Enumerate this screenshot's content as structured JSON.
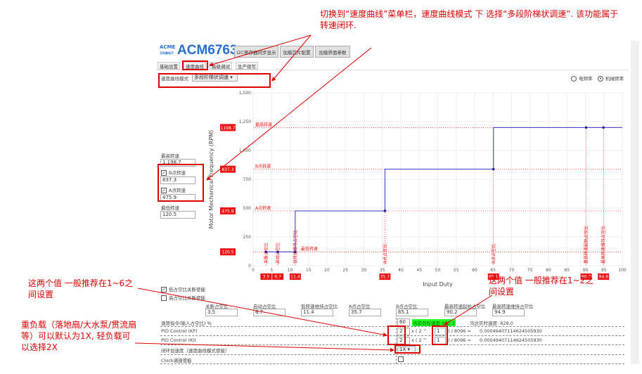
{
  "app": {
    "logo": "ACME",
    "logo_sub": "艾科微电子",
    "title": "ACM6763",
    "buttons": [
      "I2C寄存器同步显示",
      "加载芯片配置",
      "加载界面参数"
    ],
    "tabs": [
      "基础设置",
      "速度曲线",
      "高级调试",
      "生产烧写"
    ],
    "active_tab": "速度曲线"
  },
  "mode": {
    "label": "速度曲线模式",
    "value": "多段阶梯状调速"
  },
  "radios": [
    {
      "label": "电频率",
      "checked": false
    },
    {
      "label": "机械频率",
      "checked": true
    }
  ],
  "speeds": {
    "max_label": "最高转速",
    "max": "1,198.7",
    "b_label": "B点转速",
    "b": "837.3",
    "b_checked": true,
    "a_label": "A点转速",
    "a": "475.9",
    "a_checked": true,
    "min_label": "最低转速",
    "min": "120.5"
  },
  "chart_data": {
    "type": "line",
    "xlabel": "Input Duty",
    "ylabel": "Motor Mechanical Frequency (RPM)",
    "xlim": [
      0,
      100
    ],
    "ylim": [
      0,
      1500
    ],
    "xticks": [
      0,
      5,
      10,
      15,
      20,
      25,
      30,
      35,
      40,
      45,
      50,
      55,
      60,
      65,
      70,
      75,
      80,
      85,
      90,
      95,
      100
    ],
    "yticks": [
      "0",
      "250",
      "500",
      "750",
      "1,000",
      "1,250",
      "1,500"
    ],
    "grid": true,
    "series": [
      {
        "color": "#3333cc",
        "points": [
          [
            3.5,
            120.5
          ],
          [
            6.7,
            120.5
          ],
          [
            11.4,
            120.5
          ],
          [
            11.4,
            475.9
          ],
          [
            35.7,
            475.9
          ],
          [
            35.7,
            837.3
          ],
          [
            65.1,
            837.3
          ],
          [
            65.1,
            1198.7
          ],
          [
            90.2,
            1198.7
          ],
          [
            94.9,
            1198.7
          ],
          [
            100,
            1198.7
          ]
        ]
      }
    ],
    "markers": [
      [
        3.5,
        120.5
      ],
      [
        6.7,
        120.5
      ],
      [
        11.4,
        120.5
      ],
      [
        35.7,
        475.9
      ],
      [
        65.1,
        837.3
      ],
      [
        90.2,
        1198.7
      ],
      [
        94.9,
        1198.7
      ]
    ],
    "h_lines": [
      {
        "y": 1198.7,
        "label": "1198.7",
        "text": "最高转速"
      },
      {
        "y": 837.3,
        "label": "837.3",
        "text": "B点转速"
      },
      {
        "y": 475.9,
        "label": "475.9",
        "text": "A点转速"
      },
      {
        "y": 120.5,
        "label": "120.5",
        "text": "最低转速"
      }
    ],
    "v_lines": [
      {
        "x": 3.5,
        "label": "3.5",
        "text": "关断占空比"
      },
      {
        "x": 6.7,
        "label": "6.7",
        "text": "启动占空比"
      },
      {
        "x": 11.4,
        "label": "11.4",
        "text": "低转速维持占空比"
      },
      {
        "x": 35.7,
        "label": "35.7",
        "text": "A点占空比"
      },
      {
        "x": 65.1,
        "label": "65.1",
        "text": "B点占空比"
      },
      {
        "x": 90.2,
        "label": "90.2",
        "text": "最高转速起始占空比"
      },
      {
        "x": 94.9,
        "label": "94.9",
        "text": "最高转速维持占空比"
      }
    ],
    "accent": "#ee1111"
  },
  "checks": [
    {
      "label": "低占空比关断使能",
      "checked": true
    },
    {
      "label": "高占空比关断使能",
      "checked": false
    }
  ],
  "duties": [
    {
      "label": "关断占空比",
      "value": "3.5"
    },
    {
      "label": "启动占空比",
      "value": "6.7"
    },
    {
      "label": "低转速维持占空比",
      "value": "11.4"
    },
    {
      "label": "A点占空比",
      "value": "35.7"
    },
    {
      "label": "B点占空比",
      "value": "65.1"
    },
    {
      "label": "最高转速起始占空比",
      "value": "90.2"
    },
    {
      "label": "最高转速维持占空比",
      "value": "94.9"
    }
  ],
  "rows": {
    "cmd_label": "速度指令(输入占空比) %",
    "cmd_value": "60",
    "target_label": "当前目标速度:",
    "target": "837.3",
    "real": "马达实时速度: 828.0",
    "kp_label": "PID Control (KP)",
    "kp": "2",
    "kp_exp": "1",
    "ki_label": "PID Control (KI)",
    "ki": "2",
    "ki_exp": "1",
    "mul": "x ( 2 ^",
    "div": ") / 8096 =",
    "kp_result": "0.00049407114624505930",
    "ki_result": "0.00049407114624505930",
    "acc_label": "闭环加速度（速度曲线模式使能）",
    "acc": "1X",
    "clock_label": "Clock调速使能",
    "clock_checked": false
  },
  "annotations": {
    "top": "切换到“速度曲线”菜单栏，速度曲线模式 下 选择“多段阶梯状调速”. 该功能属于转速闭环.",
    "left": "这两个值 一般推荐在1~6之间设置",
    "right": "这两个值 一般推荐在1~2之间设置",
    "load": "重负载（落地扇/大水泵/贯流扇等）可以默认为1X, 轻负载可以选择2X",
    "color": "#dd0000"
  }
}
